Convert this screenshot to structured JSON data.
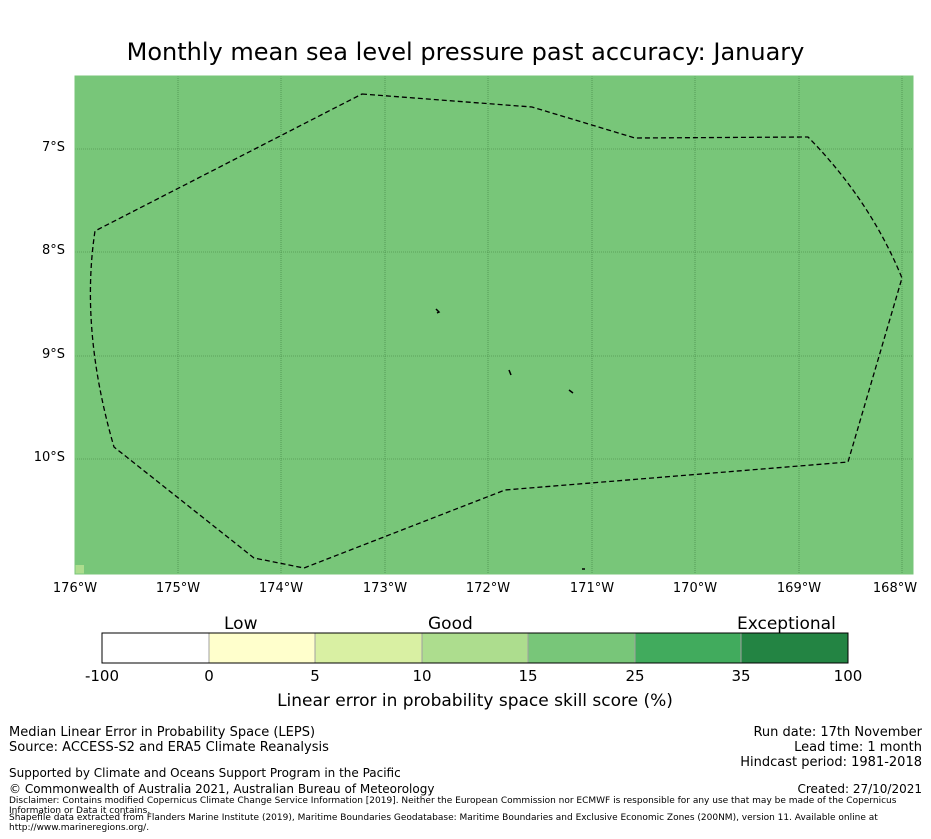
{
  "title": "Monthly mean sea level pressure past accuracy: January",
  "map": {
    "y_ticks": [
      "7°S",
      "8°S",
      "9°S",
      "10°S"
    ],
    "x_ticks": [
      "176°W",
      "175°W",
      "174°W",
      "173°W",
      "172°W",
      "171°W",
      "170°W",
      "169°W",
      "168°W"
    ],
    "fill_color": "#78c679",
    "grid_color": "#3f7f3f",
    "boundary_label": "EEZ boundary"
  },
  "colorbar": {
    "categories": [
      "Low",
      "Good",
      "Exceptional"
    ],
    "ticks": [
      "-100",
      "0",
      "5",
      "10",
      "15",
      "25",
      "35",
      "100"
    ],
    "colors": [
      "#ffffff",
      "#ffffcc",
      "#d9f0a3",
      "#addd8e",
      "#78c679",
      "#41ab5d",
      "#238443"
    ],
    "label": "Linear error in probability space skill score (%)"
  },
  "footer": {
    "method": "Median Linear Error in Probability Space (LEPS)",
    "source": "Source: ACCESS-S2 and ERA5 Climate Reanalysis",
    "support": "Supported by Climate and Oceans Support Program in the Pacific",
    "copyright": "© Commonwealth of Australia 2021, Australian Bureau of Meteorology",
    "disclaimer": "Disclaimer: Contains modified Copernicus Climate Change Service Information [2019]. Neither the European Commission nor ECMWF is responsible for any use that may be made of the Copernicus Information or Data it contains.",
    "shapefile": "Shapefile data extracted from Flanders Marine Institute (2019), Maritime Boundaries Geodatabase: Maritime Boundaries and Exclusive Economic Zones (200NM), version 11. Available online at http://www.marineregions.org/.",
    "run_date": "Run date: 17th November",
    "lead_time": "Lead time: 1 month",
    "hindcast": "Hindcast period: 1981-2018",
    "created": "Created: 27/10/2021"
  }
}
